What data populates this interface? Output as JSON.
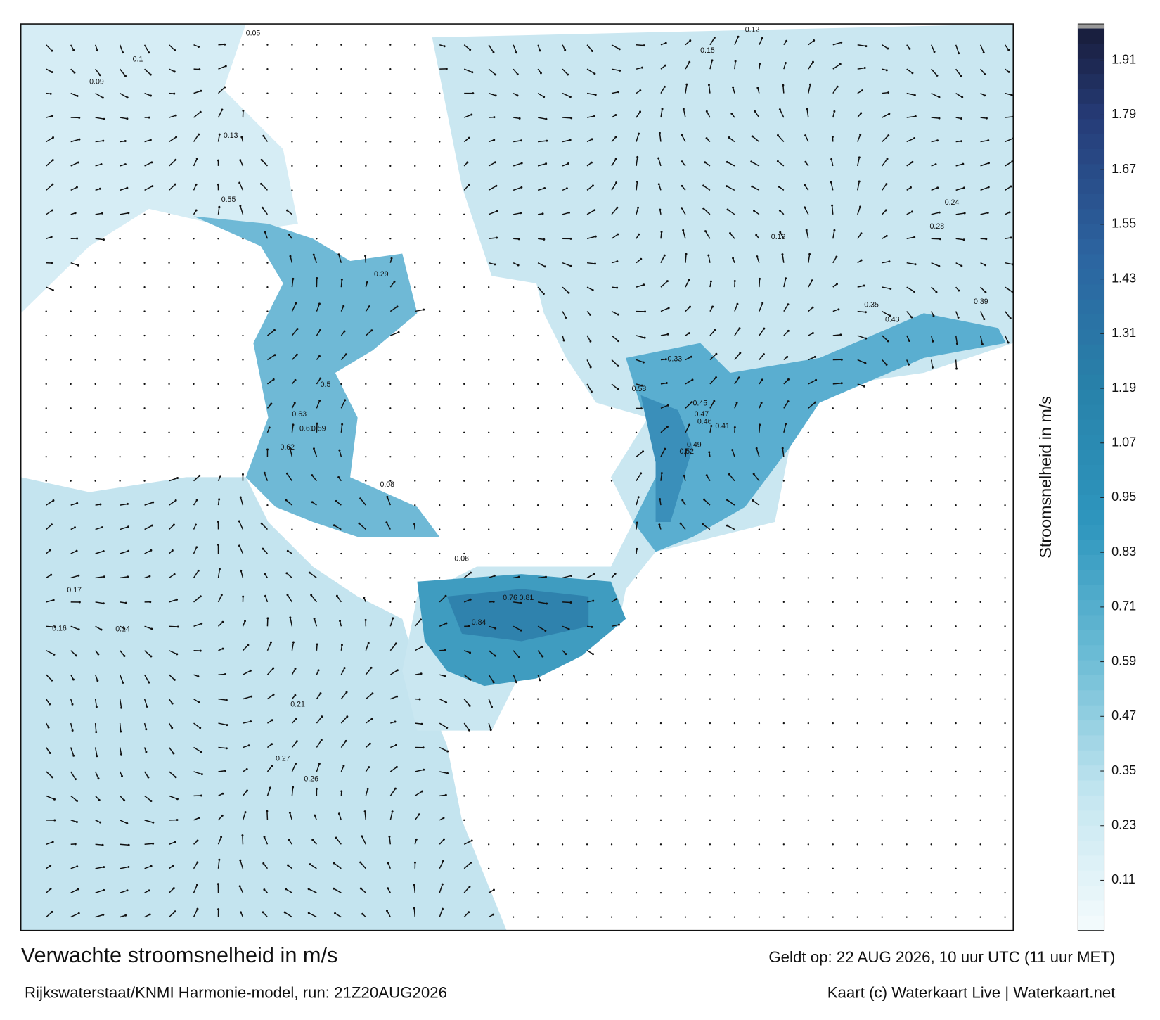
{
  "title": "Verwachte stroomsnelheid in m/s",
  "subtitle": "Rijkswaterstaat/KNMI Harmonie-model, run: 21Z20AUG2026",
  "valid": "Geldt op: 22 AUG 2026, 10 uur UTC (11 uur MET)",
  "credit": "Kaart (c) Waterkaart Live | Waterkaart.net",
  "colorbar": {
    "label": "Stroomsnelheid in m/s",
    "lim": [
      0,
      1.98
    ],
    "ticks": [
      0.11,
      0.23,
      0.35,
      0.47,
      0.59,
      0.71,
      0.83,
      0.95,
      1.07,
      1.19,
      1.31,
      1.43,
      1.55,
      1.67,
      1.79,
      1.91
    ]
  },
  "map_labels": [
    0.63,
    0.55,
    0.81,
    0.76,
    0.84,
    0.58,
    0.52,
    0.49,
    0.45,
    0.43,
    0.39,
    0.35,
    0.28,
    0.24,
    0.19,
    0.15,
    0.12,
    0.16,
    0.17,
    0.14,
    0.61,
    0.62,
    0.59,
    0.5,
    0.47,
    0.46,
    0.41,
    0.33,
    0.29,
    0.08,
    0.06,
    0.05,
    0.1,
    0.09,
    0.13,
    0.21,
    0.26,
    0.27
  ]
}
